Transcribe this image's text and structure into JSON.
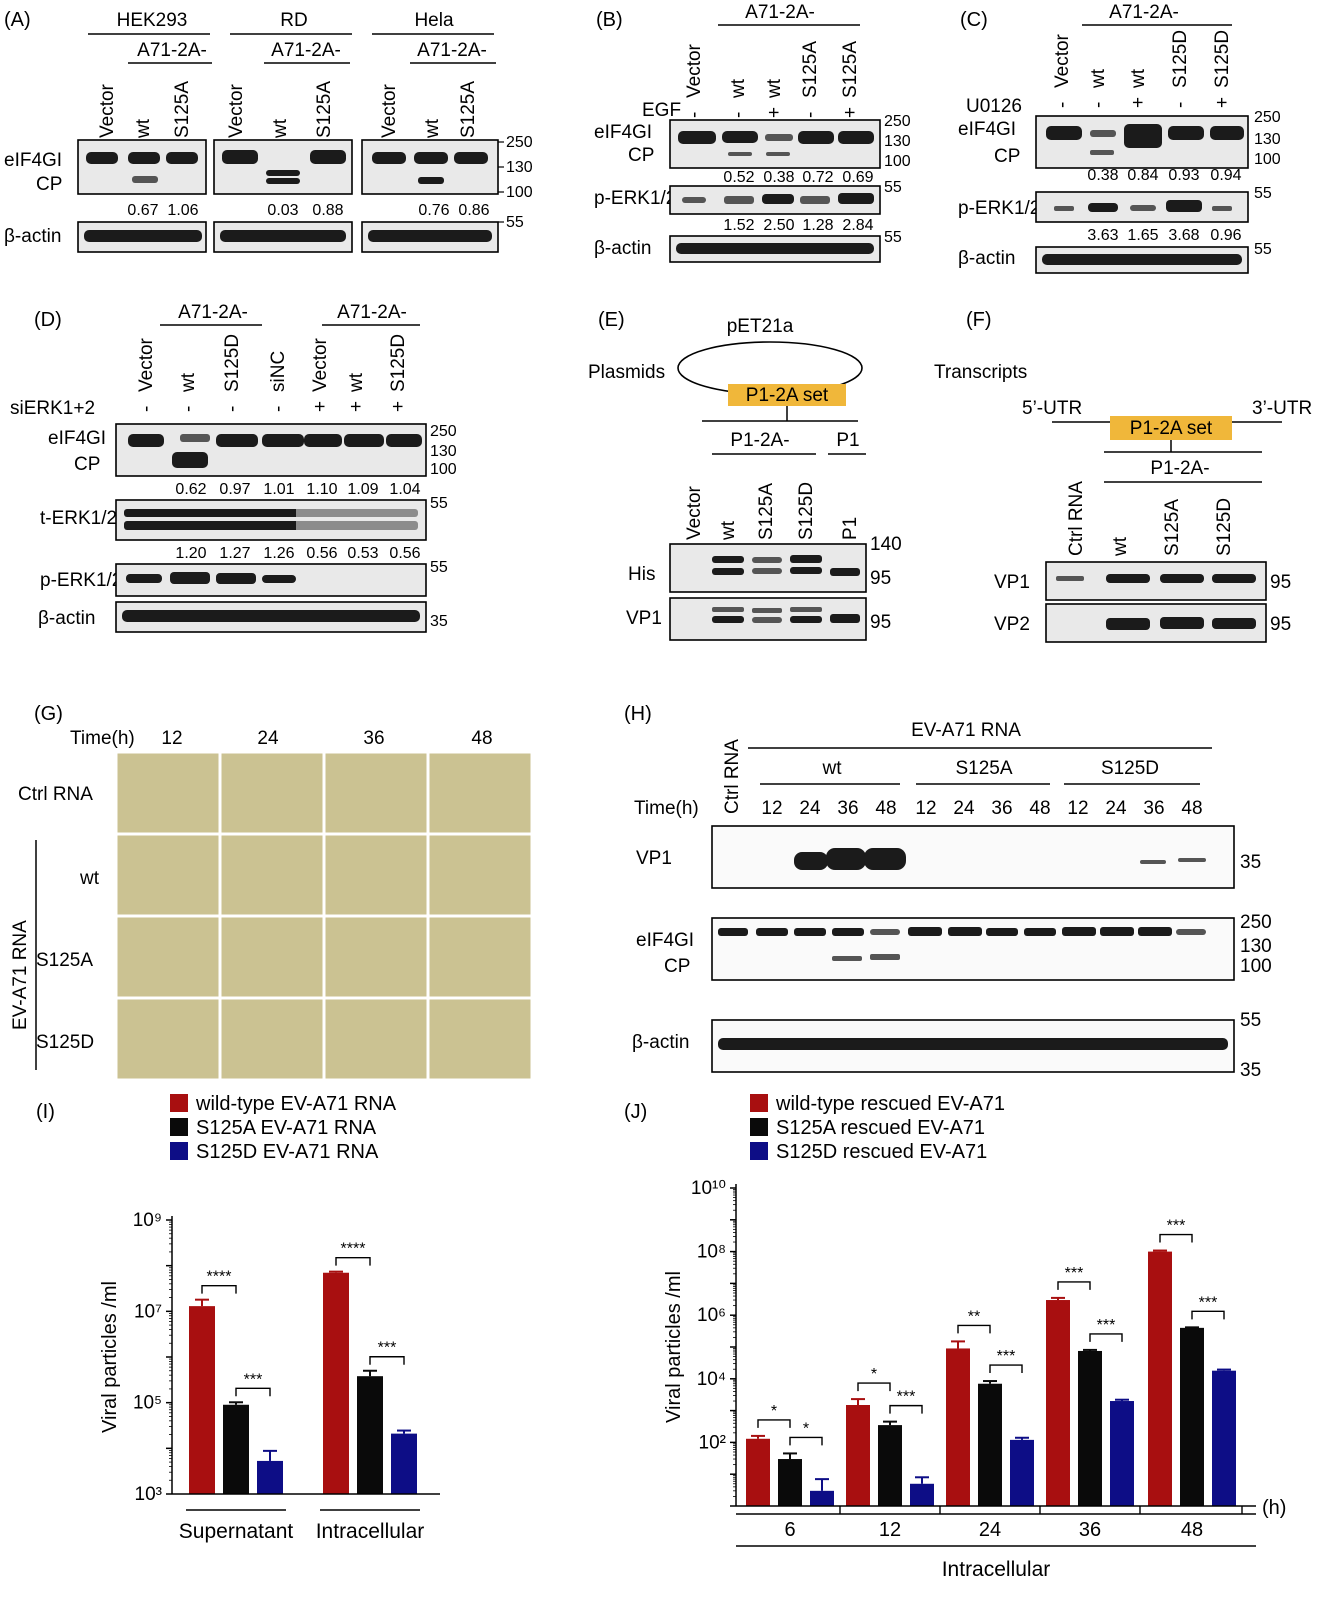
{
  "panels": {
    "A": {
      "letter": "(A)",
      "cells": [
        "HEK293",
        "RD",
        "Hela"
      ],
      "group": "A71-2A-",
      "lanes": [
        "Vector",
        "wt",
        "S125A"
      ],
      "rows": [
        "eIF4GI",
        "CP",
        "β-actin"
      ],
      "markers": [
        "250",
        "130",
        "100",
        "55"
      ],
      "ratios": [
        [
          "0.67",
          "1.06"
        ],
        [
          "0.03",
          "0.88"
        ],
        [
          "0.76",
          "0.86"
        ]
      ]
    },
    "B": {
      "letter": "(B)",
      "group": "A71-2A-",
      "lanes": [
        "Vector",
        "wt",
        "wt",
        "S125A",
        "S125A"
      ],
      "treatment": "EGF",
      "signs": [
        "-",
        "-",
        "+",
        "-",
        "+"
      ],
      "rows": [
        "eIF4GI",
        "CP",
        "p-ERK1/2",
        "β-actin"
      ],
      "markers": [
        "250",
        "130",
        "100",
        "55",
        "55"
      ],
      "ratios_cp": [
        "0.52",
        "0.38",
        "0.72",
        "0.69"
      ],
      "ratios_erk": [
        "1.52",
        "2.50",
        "1.28",
        "2.84"
      ]
    },
    "C": {
      "letter": "(C)",
      "group": "A71-2A-",
      "lanes": [
        "Vector",
        "wt",
        "wt",
        "S125D",
        "S125D"
      ],
      "treatment": "U0126",
      "signs": [
        "-",
        "-",
        "+",
        "-",
        "+"
      ],
      "rows": [
        "eIF4GI",
        "CP",
        "p-ERK1/2",
        "β-actin"
      ],
      "markers": [
        "250",
        "130",
        "100",
        "55",
        "55"
      ],
      "ratios_cp": [
        "0.38",
        "0.84",
        "0.93",
        "0.94"
      ],
      "ratios_erk": [
        "3.63",
        "1.65",
        "3.68",
        "0.96"
      ]
    },
    "D": {
      "letter": "(D)",
      "group": "A71-2A-",
      "lanes": [
        "Vector",
        "wt",
        "S125D",
        "siNC",
        "Vector",
        "wt",
        "S125D"
      ],
      "treatment": "siERK1+2",
      "signs": [
        "-",
        "-",
        "-",
        "-",
        "+",
        "+",
        "+"
      ],
      "rows": [
        "eIF4GI",
        "CP",
        "t-ERK1/2",
        "p-ERK1/2",
        "β-actin"
      ],
      "markers": [
        "250",
        "130",
        "100",
        "55",
        "55",
        "35"
      ],
      "ratios_cp": [
        "0.62",
        "0.97",
        "1.01",
        "1.10",
        "1.09",
        "1.04"
      ],
      "ratios_erk": [
        "1.20",
        "1.27",
        "1.26",
        "0.56",
        "0.53",
        "0.56"
      ]
    },
    "E": {
      "letter": "(E)",
      "vector_name": "pET21a",
      "plasmids_label": "Plasmids",
      "insert": "P1-2A set",
      "group": "P1-2A-",
      "group2": "P1",
      "lanes": [
        "Vector",
        "wt",
        "S125A",
        "S125D",
        "P1"
      ],
      "rows": [
        "His",
        "VP1"
      ],
      "markers": [
        "140",
        "95",
        "95"
      ]
    },
    "F": {
      "letter": "(F)",
      "transcripts_label": "Transcripts",
      "utr5": "5’-UTR",
      "utr3": "3’-UTR",
      "insert": "P1-2A set",
      "group": "P1-2A-",
      "lanes": [
        "Ctrl RNA",
        "wt",
        "S125A",
        "S125D"
      ],
      "rows": [
        "VP1",
        "VP2"
      ],
      "markers": [
        "95",
        "95"
      ]
    },
    "G": {
      "letter": "(G)",
      "time_label": "Time(h)",
      "times": [
        "12",
        "24",
        "36",
        "48"
      ],
      "rows": [
        "Ctrl RNA",
        "wt",
        "S125A",
        "S125D"
      ],
      "group": "EV-A71 RNA"
    },
    "H": {
      "letter": "(H)",
      "group": "EV-A71 RNA",
      "ctrl": "Ctrl RNA",
      "subgroups": [
        "wt",
        "S125A",
        "S125D"
      ],
      "time_label": "Time(h)",
      "times": [
        "12",
        "24",
        "36",
        "48",
        "12",
        "24",
        "36",
        "48",
        "12",
        "24",
        "36",
        "48"
      ],
      "rows": [
        "VP1",
        "eIF4GI",
        "CP",
        "β-actin"
      ],
      "markers": [
        "35",
        "250",
        "130",
        "100",
        "55",
        "35"
      ]
    },
    "I": {
      "letter": "(I)"
    },
    "J": {
      "letter": "(J)"
    }
  },
  "chart_data": [
    {
      "type": "bar",
      "panel": "(I)",
      "categories": [
        "Supernatant",
        "Intracellular"
      ],
      "series": [
        {
          "name": "wild-type EV-A71 RNA",
          "values": [
            13000000,
            70000000
          ],
          "err": [
            5000000,
            4000000
          ]
        },
        {
          "name": "S125A EV-A71 RNA",
          "values": [
            90000,
            380000
          ],
          "err": [
            12000,
            120000
          ]
        },
        {
          "name": "S125D EV-A71 RNA",
          "values": [
            5300,
            21000
          ],
          "err": [
            3500,
            3500
          ]
        }
      ],
      "ylabel": "Viral particles /ml",
      "yscale": "log",
      "ylim": [
        1000,
        1000000000
      ],
      "yticks": [
        "10³",
        "10⁵",
        "10⁷",
        "10⁹"
      ],
      "significance": [
        [
          "****",
          "***"
        ],
        [
          "****",
          "***"
        ]
      ],
      "legend_position": "top",
      "colors": [
        "#a80f10",
        "#0a0a0a",
        "#0d0d86"
      ]
    },
    {
      "type": "bar",
      "panel": "(J)",
      "categories": [
        "6",
        "12",
        "24",
        "36",
        "48"
      ],
      "xunit": "(h)",
      "xlabel": "Intracellular",
      "series": [
        {
          "name": "wild-type rescued EV-A71",
          "values": [
            130,
            1500,
            90000,
            3000000,
            100000000
          ],
          "err": [
            30,
            800,
            60000,
            500000,
            8000000
          ]
        },
        {
          "name": "S125A rescued EV-A71",
          "values": [
            30,
            350,
            7000,
            75000,
            400000
          ],
          "err": [
            15,
            100,
            1500,
            6000,
            15000
          ]
        },
        {
          "name": "S125D rescued EV-A71",
          "values": [
            3,
            5,
            120,
            2000,
            18000
          ],
          "err": [
            4,
            3,
            20,
            200,
            1500
          ]
        }
      ],
      "ylabel": "Viral particles /ml",
      "yscale": "log",
      "ylim": [
        1,
        10000000000
      ],
      "yticks": [
        "10²",
        "10⁴",
        "10⁶",
        "10⁸",
        "10¹⁰"
      ],
      "significance": [
        [
          "*",
          "*"
        ],
        [
          "*",
          "***"
        ],
        [
          "**",
          "***"
        ],
        [
          "***",
          "***"
        ],
        [
          "***",
          "***"
        ]
      ],
      "legend_position": "top",
      "colors": [
        "#a80f10",
        "#0a0a0a",
        "#0d0d86"
      ]
    }
  ]
}
